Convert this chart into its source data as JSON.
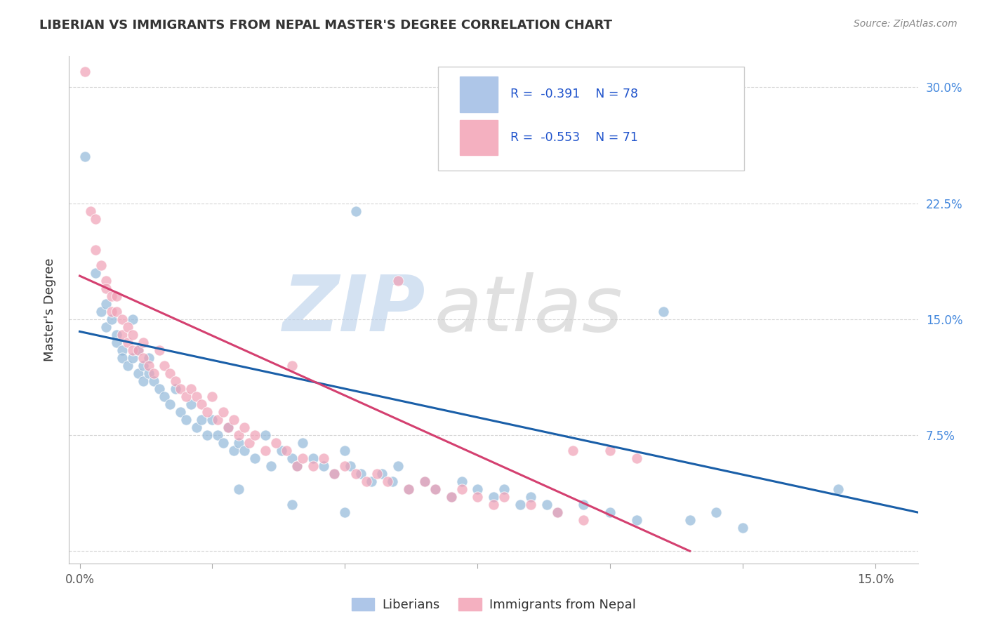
{
  "title": "LIBERIAN VS IMMIGRANTS FROM NEPAL MASTER'S DEGREE CORRELATION CHART",
  "source": "Source: ZipAtlas.com",
  "ylabel": "Master's Degree",
  "xlim": [
    -0.002,
    0.158
  ],
  "ylim": [
    -0.008,
    0.32
  ],
  "blue_scatter": [
    [
      0.001,
      0.255
    ],
    [
      0.003,
      0.18
    ],
    [
      0.004,
      0.155
    ],
    [
      0.005,
      0.16
    ],
    [
      0.005,
      0.145
    ],
    [
      0.006,
      0.15
    ],
    [
      0.007,
      0.14
    ],
    [
      0.007,
      0.135
    ],
    [
      0.008,
      0.13
    ],
    [
      0.008,
      0.125
    ],
    [
      0.009,
      0.12
    ],
    [
      0.01,
      0.15
    ],
    [
      0.01,
      0.125
    ],
    [
      0.011,
      0.115
    ],
    [
      0.011,
      0.13
    ],
    [
      0.012,
      0.12
    ],
    [
      0.012,
      0.11
    ],
    [
      0.013,
      0.125
    ],
    [
      0.013,
      0.115
    ],
    [
      0.014,
      0.11
    ],
    [
      0.015,
      0.105
    ],
    [
      0.016,
      0.1
    ],
    [
      0.017,
      0.095
    ],
    [
      0.018,
      0.105
    ],
    [
      0.019,
      0.09
    ],
    [
      0.02,
      0.085
    ],
    [
      0.021,
      0.095
    ],
    [
      0.022,
      0.08
    ],
    [
      0.023,
      0.085
    ],
    [
      0.024,
      0.075
    ],
    [
      0.025,
      0.085
    ],
    [
      0.026,
      0.075
    ],
    [
      0.027,
      0.07
    ],
    [
      0.028,
      0.08
    ],
    [
      0.029,
      0.065
    ],
    [
      0.03,
      0.07
    ],
    [
      0.031,
      0.065
    ],
    [
      0.033,
      0.06
    ],
    [
      0.035,
      0.075
    ],
    [
      0.036,
      0.055
    ],
    [
      0.038,
      0.065
    ],
    [
      0.04,
      0.06
    ],
    [
      0.041,
      0.055
    ],
    [
      0.042,
      0.07
    ],
    [
      0.044,
      0.06
    ],
    [
      0.046,
      0.055
    ],
    [
      0.048,
      0.05
    ],
    [
      0.05,
      0.065
    ],
    [
      0.051,
      0.055
    ],
    [
      0.053,
      0.05
    ],
    [
      0.055,
      0.045
    ],
    [
      0.057,
      0.05
    ],
    [
      0.059,
      0.045
    ],
    [
      0.06,
      0.055
    ],
    [
      0.062,
      0.04
    ],
    [
      0.065,
      0.045
    ],
    [
      0.067,
      0.04
    ],
    [
      0.07,
      0.035
    ],
    [
      0.072,
      0.045
    ],
    [
      0.075,
      0.04
    ],
    [
      0.078,
      0.035
    ],
    [
      0.08,
      0.04
    ],
    [
      0.083,
      0.03
    ],
    [
      0.085,
      0.035
    ],
    [
      0.088,
      0.03
    ],
    [
      0.09,
      0.025
    ],
    [
      0.095,
      0.03
    ],
    [
      0.1,
      0.025
    ],
    [
      0.105,
      0.02
    ],
    [
      0.11,
      0.155
    ],
    [
      0.115,
      0.02
    ],
    [
      0.12,
      0.025
    ],
    [
      0.125,
      0.015
    ],
    [
      0.03,
      0.04
    ],
    [
      0.04,
      0.03
    ],
    [
      0.05,
      0.025
    ],
    [
      0.143,
      0.04
    ],
    [
      0.052,
      0.22
    ]
  ],
  "pink_scatter": [
    [
      0.001,
      0.31
    ],
    [
      0.002,
      0.22
    ],
    [
      0.003,
      0.215
    ],
    [
      0.003,
      0.195
    ],
    [
      0.004,
      0.185
    ],
    [
      0.005,
      0.175
    ],
    [
      0.005,
      0.17
    ],
    [
      0.006,
      0.165
    ],
    [
      0.006,
      0.155
    ],
    [
      0.007,
      0.165
    ],
    [
      0.007,
      0.155
    ],
    [
      0.008,
      0.15
    ],
    [
      0.008,
      0.14
    ],
    [
      0.009,
      0.145
    ],
    [
      0.009,
      0.135
    ],
    [
      0.01,
      0.13
    ],
    [
      0.01,
      0.14
    ],
    [
      0.011,
      0.13
    ],
    [
      0.012,
      0.125
    ],
    [
      0.012,
      0.135
    ],
    [
      0.013,
      0.12
    ],
    [
      0.014,
      0.115
    ],
    [
      0.015,
      0.13
    ],
    [
      0.016,
      0.12
    ],
    [
      0.017,
      0.115
    ],
    [
      0.018,
      0.11
    ],
    [
      0.019,
      0.105
    ],
    [
      0.02,
      0.1
    ],
    [
      0.021,
      0.105
    ],
    [
      0.022,
      0.1
    ],
    [
      0.023,
      0.095
    ],
    [
      0.024,
      0.09
    ],
    [
      0.025,
      0.1
    ],
    [
      0.026,
      0.085
    ],
    [
      0.027,
      0.09
    ],
    [
      0.028,
      0.08
    ],
    [
      0.029,
      0.085
    ],
    [
      0.03,
      0.075
    ],
    [
      0.031,
      0.08
    ],
    [
      0.032,
      0.07
    ],
    [
      0.033,
      0.075
    ],
    [
      0.035,
      0.065
    ],
    [
      0.037,
      0.07
    ],
    [
      0.039,
      0.065
    ],
    [
      0.04,
      0.12
    ],
    [
      0.041,
      0.055
    ],
    [
      0.042,
      0.06
    ],
    [
      0.044,
      0.055
    ],
    [
      0.046,
      0.06
    ],
    [
      0.048,
      0.05
    ],
    [
      0.05,
      0.055
    ],
    [
      0.052,
      0.05
    ],
    [
      0.054,
      0.045
    ],
    [
      0.056,
      0.05
    ],
    [
      0.058,
      0.045
    ],
    [
      0.06,
      0.175
    ],
    [
      0.062,
      0.04
    ],
    [
      0.065,
      0.045
    ],
    [
      0.067,
      0.04
    ],
    [
      0.07,
      0.035
    ],
    [
      0.072,
      0.04
    ],
    [
      0.075,
      0.035
    ],
    [
      0.078,
      0.03
    ],
    [
      0.08,
      0.035
    ],
    [
      0.085,
      0.03
    ],
    [
      0.09,
      0.025
    ],
    [
      0.093,
      0.065
    ],
    [
      0.095,
      0.02
    ],
    [
      0.1,
      0.065
    ],
    [
      0.105,
      0.06
    ]
  ],
  "blue_line_x": [
    0.0,
    0.158
  ],
  "blue_line_y": [
    0.142,
    0.025
  ],
  "pink_line_x": [
    0.0,
    0.115
  ],
  "pink_line_y": [
    0.178,
    0.0
  ],
  "dot_color_blue": "#92b8d9",
  "dot_color_pink": "#f0a0b5",
  "line_color_blue": "#1a5fa8",
  "line_color_pink": "#d44070",
  "background_color": "#ffffff",
  "grid_color": "#cccccc",
  "title_color": "#333333",
  "source_color": "#888888",
  "tick_color_right": "#4488dd",
  "ylabel_color": "#333333"
}
